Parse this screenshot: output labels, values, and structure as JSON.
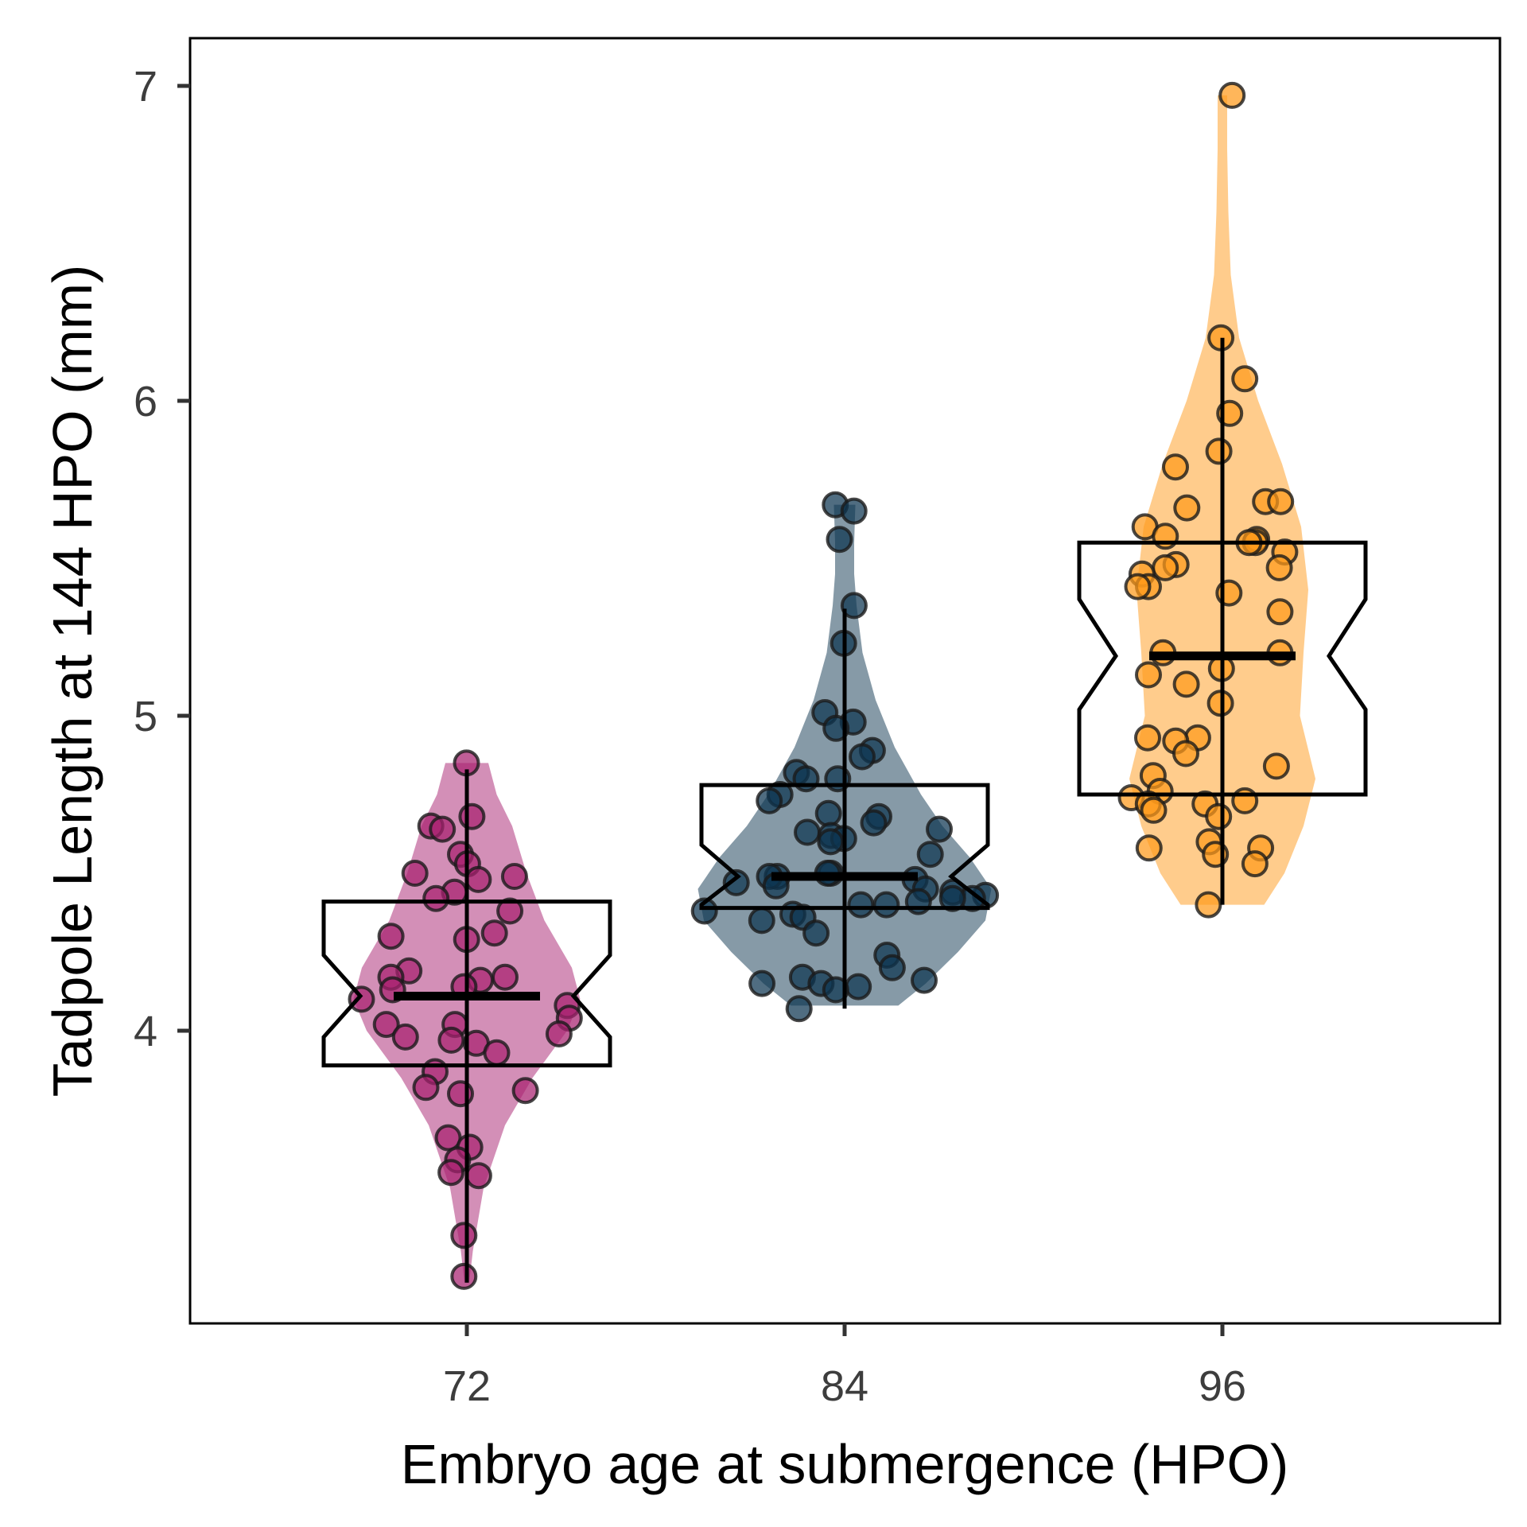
{
  "chart_data": {
    "type": "violin",
    "xlabel": "Embryo age at submergence (HPO)",
    "ylabel": "Tadpole Length at 144 HPO (mm)",
    "categories": [
      "72",
      "84",
      "96"
    ],
    "ylim": [
      3.1,
      7.15
    ],
    "yticks": [
      4,
      5,
      6,
      7
    ],
    "grid": false,
    "colors": {
      "72": "#a8206f",
      "84": "#0d3550",
      "96": "#ff9a1a"
    },
    "groups": [
      {
        "category": "72",
        "box": {
          "min": 3.2,
          "q1": 3.89,
          "median": 4.11,
          "q3": 4.41,
          "max": 4.83,
          "notch_low": 4.24,
          "notch_high": 3.98
        },
        "violin": [
          [
            3.2,
            0.02
          ],
          [
            3.3,
            0.05
          ],
          [
            3.5,
            0.14
          ],
          [
            3.7,
            0.32
          ],
          [
            3.85,
            0.55
          ],
          [
            4.0,
            0.84
          ],
          [
            4.1,
            0.95
          ],
          [
            4.2,
            0.88
          ],
          [
            4.35,
            0.65
          ],
          [
            4.5,
            0.5
          ],
          [
            4.65,
            0.38
          ],
          [
            4.75,
            0.25
          ],
          [
            4.85,
            0.18
          ]
        ],
        "points": [
          4.85,
          4.68,
          4.65,
          4.64,
          4.56,
          4.53,
          4.5,
          4.49,
          4.48,
          4.44,
          4.42,
          4.38,
          4.31,
          4.3,
          4.29,
          4.19,
          4.17,
          4.17,
          4.16,
          4.14,
          4.13,
          4.1,
          4.08,
          4.04,
          4.02,
          4.02,
          3.99,
          3.98,
          3.97,
          3.96,
          3.93,
          3.87,
          3.82,
          3.81,
          3.8,
          3.66,
          3.63,
          3.59,
          3.55,
          3.54,
          3.35,
          3.22
        ]
      },
      {
        "category": "84",
        "box": {
          "min": 4.07,
          "q1": 4.39,
          "median": 4.49,
          "q3": 4.78,
          "max": 5.34,
          "notch_low": 4.59,
          "notch_high": 4.4
        },
        "violin": [
          [
            4.08,
            0.45
          ],
          [
            4.15,
            0.68
          ],
          [
            4.25,
            0.95
          ],
          [
            4.35,
            1.18
          ],
          [
            4.45,
            1.23
          ],
          [
            4.55,
            1.05
          ],
          [
            4.65,
            0.82
          ],
          [
            4.75,
            0.64
          ],
          [
            4.9,
            0.42
          ],
          [
            5.05,
            0.26
          ],
          [
            5.2,
            0.15
          ],
          [
            5.35,
            0.1
          ],
          [
            5.45,
            0.08
          ],
          [
            5.55,
            0.08
          ],
          [
            5.67,
            0.09
          ]
        ],
        "points": [
          5.67,
          5.65,
          5.56,
          5.35,
          5.23,
          5.01,
          4.98,
          4.96,
          4.89,
          4.87,
          4.82,
          4.8,
          4.8,
          4.75,
          4.73,
          4.69,
          4.68,
          4.66,
          4.64,
          4.63,
          4.62,
          4.61,
          4.6,
          4.56,
          4.5,
          4.5,
          4.49,
          4.49,
          4.48,
          4.47,
          4.46,
          4.45,
          4.44,
          4.43,
          4.42,
          4.42,
          4.41,
          4.4,
          4.4,
          4.38,
          4.37,
          4.36,
          4.35,
          4.31,
          4.24,
          4.2,
          4.17,
          4.16,
          4.15,
          4.15,
          4.14,
          4.13,
          4.07
        ]
      },
      {
        "category": "96",
        "box": {
          "min": 4.4,
          "q1": 4.75,
          "median": 5.19,
          "q3": 5.55,
          "max": 6.2,
          "notch_low": 5.37,
          "notch_high": 5.02
        },
        "violin": [
          [
            4.4,
            0.35
          ],
          [
            4.5,
            0.52
          ],
          [
            4.65,
            0.68
          ],
          [
            4.8,
            0.78
          ],
          [
            5.0,
            0.65
          ],
          [
            5.2,
            0.68
          ],
          [
            5.4,
            0.72
          ],
          [
            5.6,
            0.66
          ],
          [
            5.8,
            0.5
          ],
          [
            6.0,
            0.3
          ],
          [
            6.2,
            0.14
          ],
          [
            6.4,
            0.07
          ],
          [
            6.6,
            0.05
          ],
          [
            6.8,
            0.04
          ],
          [
            6.97,
            0.04
          ]
        ],
        "points": [
          6.97,
          6.2,
          6.07,
          5.96,
          5.84,
          5.79,
          5.68,
          5.68,
          5.66,
          5.6,
          5.57,
          5.56,
          5.55,
          5.55,
          5.52,
          5.48,
          5.47,
          5.47,
          5.45,
          5.41,
          5.41,
          5.39,
          5.33,
          5.2,
          5.2,
          5.15,
          5.13,
          5.1,
          5.04,
          4.93,
          4.93,
          4.92,
          4.88,
          4.84,
          4.81,
          4.76,
          4.74,
          4.73,
          4.72,
          4.72,
          4.7,
          4.68,
          4.6,
          4.58,
          4.58,
          4.56,
          4.53,
          4.4
        ]
      }
    ]
  }
}
